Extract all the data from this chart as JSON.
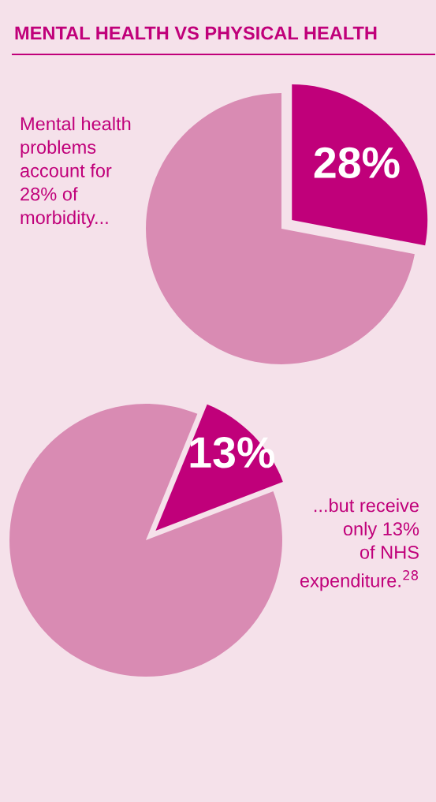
{
  "chart_data": [
    {
      "type": "pie",
      "title": "MENTAL HEALTH VS PHYSICAL HEALTH",
      "categories": [
        null,
        null
      ],
      "values": [
        28,
        72
      ],
      "colors": [
        "#c0007a",
        "#d98bb3"
      ],
      "value_labels": [
        "28%",
        null
      ],
      "annotations": [
        "Mental health\nproblems\naccount for\n28% of\nmorbidity..."
      ]
    },
    {
      "type": "pie",
      "categories": [
        null,
        null
      ],
      "values": [
        13,
        87
      ],
      "colors": [
        "#c0007a",
        "#d98bb3"
      ],
      "value_labels": [
        "13%",
        null
      ],
      "annotations": [
        "...but receive\nonly 13%\nof NHS\nexpenditure.$^{28}$"
      ]
    }
  ]
}
